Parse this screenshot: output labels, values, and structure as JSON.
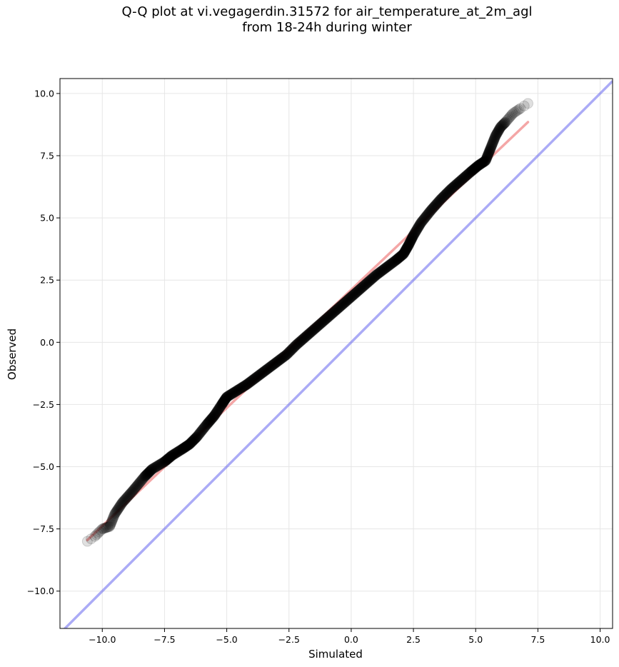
{
  "chart_data": {
    "type": "scatter",
    "title_line1": "Q-Q plot at vi.vegagerdin.31572 for air_temperature_at_2m_agl",
    "title_line2": "from 18-24h during winter",
    "xlabel": "Simulated",
    "ylabel": "Observed",
    "xlim": [
      -11.7,
      10.5
    ],
    "ylim": [
      -11.5,
      10.6
    ],
    "xticks": [
      -10.0,
      -7.5,
      -5.0,
      -2.5,
      0.0,
      2.5,
      5.0,
      7.5,
      10.0
    ],
    "yticks": [
      -10.0,
      -7.5,
      -5.0,
      -2.5,
      0.0,
      2.5,
      5.0,
      7.5,
      10.0
    ],
    "xtick_labels": [
      "−10.0",
      "−7.5",
      "−5.0",
      "−2.5",
      "0.0",
      "2.5",
      "5.0",
      "7.5",
      "10.0"
    ],
    "ytick_labels": [
      "10.0",
      "7.5",
      "5.0",
      "2.5",
      "0.0",
      "−2.5",
      "−5.0",
      "−7.5",
      "−10.0"
    ],
    "grid": true,
    "quantile_curve": [
      [
        -10.6,
        -8.0
      ],
      [
        -10.3,
        -7.8
      ],
      [
        -10.0,
        -7.5
      ],
      [
        -9.7,
        -7.4
      ],
      [
        -9.5,
        -6.9
      ],
      [
        -9.2,
        -6.45
      ],
      [
        -8.8,
        -6.0
      ],
      [
        -8.3,
        -5.4
      ],
      [
        -8.0,
        -5.1
      ],
      [
        -7.5,
        -4.8
      ],
      [
        -7.2,
        -4.55
      ],
      [
        -6.8,
        -4.3
      ],
      [
        -6.5,
        -4.1
      ],
      [
        -6.2,
        -3.8
      ],
      [
        -5.8,
        -3.3
      ],
      [
        -5.5,
        -2.95
      ],
      [
        -5.2,
        -2.5
      ],
      [
        -5.0,
        -2.2
      ],
      [
        -4.6,
        -1.95
      ],
      [
        -4.2,
        -1.7
      ],
      [
        -3.8,
        -1.4
      ],
      [
        -3.4,
        -1.1
      ],
      [
        -3.0,
        -0.8
      ],
      [
        -2.6,
        -0.5
      ],
      [
        -2.2,
        -0.1
      ],
      [
        -1.8,
        0.25
      ],
      [
        -1.4,
        0.6
      ],
      [
        -1.0,
        0.95
      ],
      [
        -0.6,
        1.3
      ],
      [
        -0.2,
        1.65
      ],
      [
        0.2,
        2.0
      ],
      [
        0.6,
        2.35
      ],
      [
        1.0,
        2.7
      ],
      [
        1.4,
        3.0
      ],
      [
        1.8,
        3.3
      ],
      [
        2.1,
        3.55
      ],
      [
        2.3,
        3.9
      ],
      [
        2.5,
        4.3
      ],
      [
        2.8,
        4.8
      ],
      [
        3.2,
        5.3
      ],
      [
        3.6,
        5.75
      ],
      [
        4.0,
        6.15
      ],
      [
        4.4,
        6.5
      ],
      [
        4.8,
        6.85
      ],
      [
        5.1,
        7.1
      ],
      [
        5.4,
        7.3
      ],
      [
        5.6,
        7.8
      ],
      [
        5.8,
        8.3
      ],
      [
        6.0,
        8.65
      ],
      [
        6.2,
        8.85
      ],
      [
        6.5,
        9.2
      ],
      [
        6.8,
        9.4
      ],
      [
        7.1,
        9.6
      ]
    ],
    "regression_line": [
      [
        -10.6,
        -7.95
      ],
      [
        7.1,
        8.85
      ]
    ],
    "identity_line": [
      [
        -11.7,
        -11.7
      ],
      [
        10.5,
        10.5
      ]
    ],
    "colors": {
      "points": "#000000",
      "regression": "#f08080",
      "identity": "#6666ee",
      "grid": "#e6e6e6",
      "axes": "#000000"
    }
  }
}
